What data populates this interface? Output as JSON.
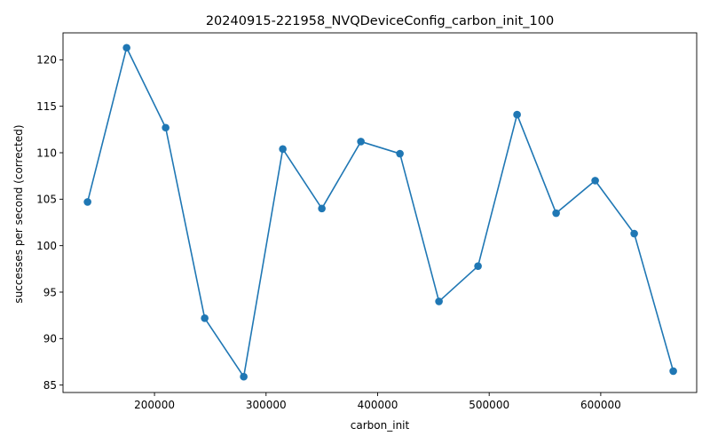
{
  "chart_data": {
    "type": "line",
    "title": "20240915-221958_NVQDeviceConfig_carbon_init_100",
    "xlabel": "carbon_init",
    "ylabel": "successes per second (corrected)",
    "xlim": [
      118000,
      686000
    ],
    "ylim": [
      84.2,
      122.9
    ],
    "xticks": [
      200000,
      300000,
      400000,
      500000,
      600000
    ],
    "yticks": [
      85,
      90,
      95,
      100,
      105,
      110,
      115,
      120
    ],
    "color": "#1f77b4",
    "marker": "circle",
    "grid": false,
    "series": [
      {
        "name": "successes per second (corrected)",
        "x": [
          140000,
          175000,
          210000,
          245000,
          280000,
          315000,
          350000,
          385000,
          420000,
          455000,
          490000,
          525000,
          560000,
          595000,
          630000,
          665000
        ],
        "y": [
          104.7,
          121.3,
          112.7,
          92.2,
          85.9,
          110.4,
          104.0,
          111.2,
          109.9,
          94.0,
          97.8,
          114.1,
          103.5,
          107.0,
          101.3,
          86.5
        ]
      }
    ]
  }
}
